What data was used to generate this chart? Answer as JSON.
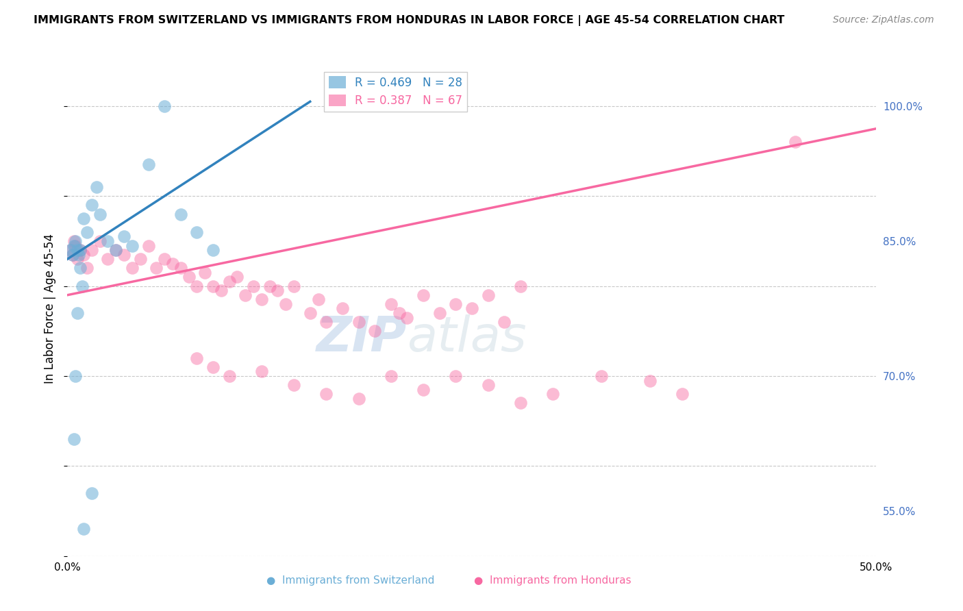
{
  "title": "IMMIGRANTS FROM SWITZERLAND VS IMMIGRANTS FROM HONDURAS IN LABOR FORCE | AGE 45-54 CORRELATION CHART",
  "source": "Source: ZipAtlas.com",
  "ylabel": "In Labor Force | Age 45-54",
  "legend": [
    {
      "label": "R = 0.469   N = 28",
      "color": "#6baed6"
    },
    {
      "label": "R = 0.387   N = 67",
      "color": "#f768a1"
    }
  ],
  "watermark_zip": "ZIP",
  "watermark_atlas": "atlas",
  "swiss_color": "#6baed6",
  "honduras_color": "#f768a1",
  "swiss_line_color": "#3182bd",
  "honduras_line_color": "#f768a1",
  "bg_color": "#ffffff",
  "grid_color": "#c8c8c8",
  "xlim": [
    0,
    50
  ],
  "ylim": [
    50,
    105
  ],
  "right_yticks": [
    100,
    85,
    70,
    55
  ],
  "right_yticklabels": [
    "100.0%",
    "85.0%",
    "70.0%",
    "55.0%"
  ],
  "swiss_x": [
    0.2,
    0.3,
    0.4,
    0.5,
    0.6,
    0.7,
    0.8,
    1.0,
    1.2,
    1.5,
    1.8,
    2.0,
    2.5,
    3.0,
    3.5,
    4.0,
    5.0,
    6.0,
    7.0,
    8.0,
    9.0,
    0.4,
    0.5,
    0.6,
    1.0,
    1.5,
    0.8,
    0.9
  ],
  "swiss_y": [
    84.0,
    83.5,
    84.5,
    85.0,
    84.0,
    83.5,
    84.0,
    87.5,
    86.0,
    89.0,
    91.0,
    88.0,
    85.0,
    84.0,
    85.5,
    84.5,
    93.5,
    100.0,
    88.0,
    86.0,
    84.0,
    63.0,
    70.0,
    77.0,
    53.0,
    57.0,
    82.0,
    80.0
  ],
  "honduras_x": [
    0.2,
    0.3,
    0.4,
    0.5,
    0.6,
    0.8,
    1.0,
    1.2,
    1.5,
    2.0,
    2.5,
    3.0,
    3.5,
    4.0,
    4.5,
    5.0,
    5.5,
    6.0,
    6.5,
    7.0,
    7.5,
    8.0,
    8.5,
    9.0,
    9.5,
    10.0,
    10.5,
    11.0,
    11.5,
    12.0,
    12.5,
    13.0,
    13.5,
    14.0,
    15.0,
    15.5,
    16.0,
    17.0,
    18.0,
    19.0,
    20.0,
    20.5,
    21.0,
    22.0,
    23.0,
    24.0,
    25.0,
    26.0,
    27.0,
    28.0,
    8.0,
    9.0,
    10.0,
    12.0,
    14.0,
    16.0,
    18.0,
    20.0,
    22.0,
    24.0,
    26.0,
    28.0,
    30.0,
    33.0,
    36.0,
    38.0,
    45.0
  ],
  "honduras_y": [
    84.0,
    83.5,
    85.0,
    84.5,
    83.0,
    84.0,
    83.5,
    82.0,
    84.0,
    85.0,
    83.0,
    84.0,
    83.5,
    82.0,
    83.0,
    84.5,
    82.0,
    83.0,
    82.5,
    82.0,
    81.0,
    80.0,
    81.5,
    80.0,
    79.5,
    80.5,
    81.0,
    79.0,
    80.0,
    78.5,
    80.0,
    79.5,
    78.0,
    80.0,
    77.0,
    78.5,
    76.0,
    77.5,
    76.0,
    75.0,
    78.0,
    77.0,
    76.5,
    79.0,
    77.0,
    78.0,
    77.5,
    79.0,
    76.0,
    80.0,
    72.0,
    71.0,
    70.0,
    70.5,
    69.0,
    68.0,
    67.5,
    70.0,
    68.5,
    70.0,
    69.0,
    67.0,
    68.0,
    70.0,
    69.5,
    68.0,
    96.0
  ],
  "swiss_line_x": [
    0,
    15
  ],
  "swiss_line_y": [
    83.0,
    100.5
  ],
  "honduras_line_x": [
    0,
    50
  ],
  "honduras_line_y": [
    79.0,
    97.5
  ]
}
